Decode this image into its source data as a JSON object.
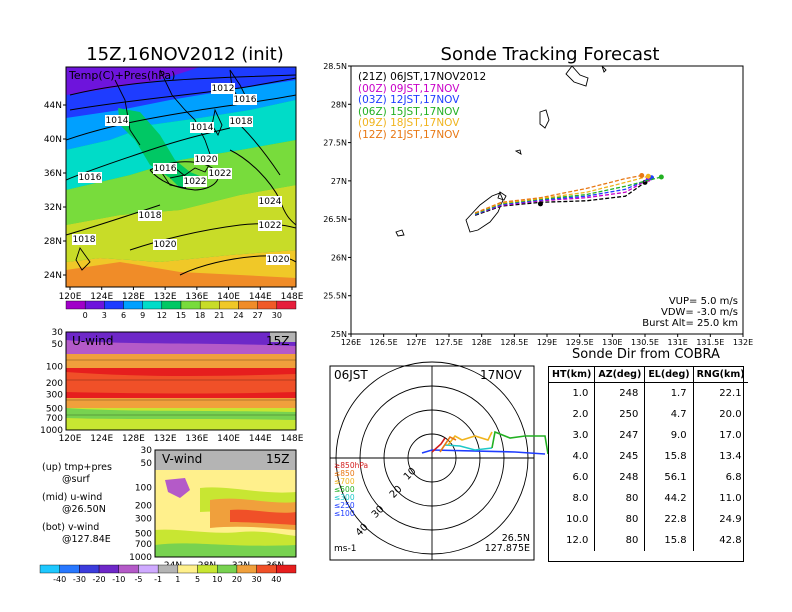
{
  "left_title": "15Z,16NOV2012 (init)",
  "right_title": "Sonde Tracking Forecast",
  "panels": {
    "top": {
      "label": "Temp(C)+Pres(hPa)"
    },
    "mid": {
      "label": "U-wind",
      "time": "15Z"
    },
    "bot": {
      "label": "V-wind",
      "time": "15Z"
    }
  },
  "notes": {
    "up1": "(up) tmp+pres",
    "up2": "@surf",
    "mid1": "(mid) u-wind",
    "mid2": "@26.50N",
    "bot1": "(bot) v-wind",
    "bot2": "@127.84E"
  },
  "track_legend": [
    {
      "label": "(21Z) 06JST,17NOV2012",
      "color": "#000000"
    },
    {
      "label": "(00Z) 09JST,17NOV",
      "color": "#c800c8"
    },
    {
      "label": "(03Z) 12JST,17NOV",
      "color": "#1e3cff"
    },
    {
      "label": "(06Z) 15JST,17NOV",
      "color": "#22b022"
    },
    {
      "label": "(09Z) 18JST,17NOV",
      "color": "#f0b41e"
    },
    {
      "label": "(12Z) 21JST,17NOV",
      "color": "#e87814"
    }
  ],
  "track_params": {
    "vup": "VUP= 5.0 m/s",
    "vdw": "VDW= -3.0 m/s",
    "burst": "Burst Alt= 25.0 km"
  },
  "polar": {
    "time": "06JST",
    "date": "17NOV",
    "lat": "26.5N",
    "lon": "127.875E",
    "unit": "ms-1",
    "ring_labels": [
      "10",
      "20",
      "30",
      "40"
    ],
    "level_labels": [
      "≥850hPa",
      "≤850",
      "≤700",
      "≤500",
      "≤300",
      "≤250",
      "≤100"
    ],
    "level_colors": [
      "#d21e1e",
      "#e87814",
      "#f0b41e",
      "#22b022",
      "#1ec8c8",
      "#1e3cff",
      "#1e3cff"
    ]
  },
  "table": {
    "title": "Sonde Dir from COBRA",
    "headers": [
      "HT(km)",
      "AZ(deg)",
      "EL(deg)",
      "RNG(km)"
    ],
    "rows": [
      [
        "1.0",
        "248",
        "1.7",
        "22.1"
      ],
      [
        "2.0",
        "250",
        "4.7",
        "20.0"
      ],
      [
        "3.0",
        "247",
        "9.0",
        "17.0"
      ],
      [
        "4.0",
        "245",
        "15.8",
        "13.4"
      ],
      [
        "6.0",
        "248",
        "56.1",
        "6.8"
      ],
      [
        "8.0",
        "80",
        "44.2",
        "11.0"
      ],
      [
        "10.0",
        "80",
        "22.8",
        "24.9"
      ],
      [
        "12.0",
        "80",
        "15.8",
        "42.8"
      ]
    ]
  },
  "chart_data": [
    {
      "type": "heatmap",
      "title": "Temp(C)+Pres(hPa)",
      "x_ticks": [
        "120E",
        "124E",
        "128E",
        "132E",
        "136E",
        "140E",
        "144E",
        "148E"
      ],
      "y_ticks": [
        "24N",
        "28N",
        "32N",
        "36N",
        "40N",
        "44N"
      ],
      "pressure_labels": [
        "1012",
        "1016",
        "1014",
        "1018",
        "1014",
        "1020",
        "1016",
        "1016",
        "1022",
        "1022",
        "1018",
        "1024",
        "1018",
        "1020",
        "1022",
        "1020"
      ],
      "colorbar": {
        "levels": [
          "0",
          "3",
          "6",
          "9",
          "12",
          "15",
          "18",
          "21",
          "24",
          "27",
          "30"
        ],
        "colors": [
          "#a000c8",
          "#6e14dc",
          "#1e3cff",
          "#00a0ff",
          "#00dcc8",
          "#00c864",
          "#78dc3c",
          "#c8dc28",
          "#f0c828",
          "#f08c28",
          "#f05a28",
          "#e61e3c"
        ]
      }
    },
    {
      "type": "heatmap",
      "title": "U-wind",
      "x_ticks": [
        "120E",
        "124E",
        "128E",
        "132E",
        "136E",
        "140E",
        "144E",
        "148E"
      ],
      "y_ticks": [
        "30",
        "50",
        "100",
        "200",
        "300",
        "500",
        "700",
        "1000"
      ]
    },
    {
      "type": "heatmap",
      "title": "V-wind",
      "x_ticks": [
        "24N",
        "28N",
        "32N",
        "36N"
      ],
      "y_ticks": [
        "30",
        "50",
        "100",
        "200",
        "300",
        "500",
        "700",
        "1000"
      ],
      "colorbar": {
        "levels": [
          "-40",
          "-30",
          "-20",
          "-10",
          "-5",
          "-1",
          "1",
          "5",
          "10",
          "20",
          "30",
          "40"
        ],
        "colors": [
          "#1ec8ff",
          "#2878ff",
          "#3c3cdc",
          "#6e28c8",
          "#b45ac8",
          "#cfaaff",
          "#b4b4b4",
          "#fff08c",
          "#c8e632",
          "#78d250",
          "#f0a03c",
          "#f05028",
          "#e61e1e"
        ]
      }
    },
    {
      "type": "line",
      "title": "Sonde Tracking Forecast",
      "x_ticks": [
        "126E",
        "126.5E",
        "127E",
        "127.5E",
        "128E",
        "128.5E",
        "129E",
        "129.5E",
        "130E",
        "130.5E",
        "131E",
        "131.5E",
        "132E"
      ],
      "y_ticks": [
        "25N",
        "25.5N",
        "26N",
        "26.5N",
        "27N",
        "27.5N",
        "28N",
        "28.5N"
      ],
      "xlim": [
        126,
        132
      ],
      "ylim": [
        25,
        28.5
      ],
      "series": [
        {
          "name": "(21Z) 06JST,17NOV2012",
          "x": [
            127.9,
            128.3,
            128.9,
            129.6,
            130.2,
            130.5
          ],
          "y": [
            26.55,
            26.67,
            26.72,
            26.74,
            26.8,
            26.98
          ]
        },
        {
          "name": "(00Z) 09JST,17NOV",
          "x": [
            127.9,
            128.3,
            128.9,
            129.6,
            130.2,
            130.55
          ],
          "y": [
            26.56,
            26.68,
            26.74,
            26.78,
            26.85,
            27.02
          ]
        },
        {
          "name": "(03Z) 12JST,17NOV",
          "x": [
            127.9,
            128.3,
            128.9,
            129.6,
            130.2,
            130.6
          ],
          "y": [
            26.56,
            26.69,
            26.75,
            26.8,
            26.89,
            27.04
          ]
        },
        {
          "name": "(06Z) 15JST,17NOV",
          "x": [
            127.9,
            128.3,
            128.9,
            129.6,
            130.2,
            130.75
          ],
          "y": [
            26.57,
            26.7,
            26.76,
            26.82,
            26.93,
            27.05
          ]
        },
        {
          "name": "(09Z) 18JST,17NOV",
          "x": [
            127.9,
            128.3,
            128.9,
            129.6,
            130.2,
            130.55
          ],
          "y": [
            26.58,
            26.71,
            26.77,
            26.85,
            26.98,
            27.06
          ]
        },
        {
          "name": "(12Z) 21JST,17NOV",
          "x": [
            127.9,
            128.3,
            128.9,
            129.6,
            130.2,
            130.45
          ],
          "y": [
            26.58,
            26.72,
            26.78,
            26.9,
            27.03,
            27.07
          ]
        }
      ]
    }
  ]
}
